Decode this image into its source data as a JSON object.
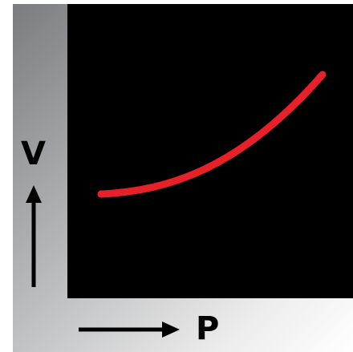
{
  "diagram": {
    "y_axis_label": "V",
    "x_axis_label": "P",
    "curve_color": "#e8202a",
    "plot_background": "#000000",
    "arrow_color": "#000000"
  }
}
